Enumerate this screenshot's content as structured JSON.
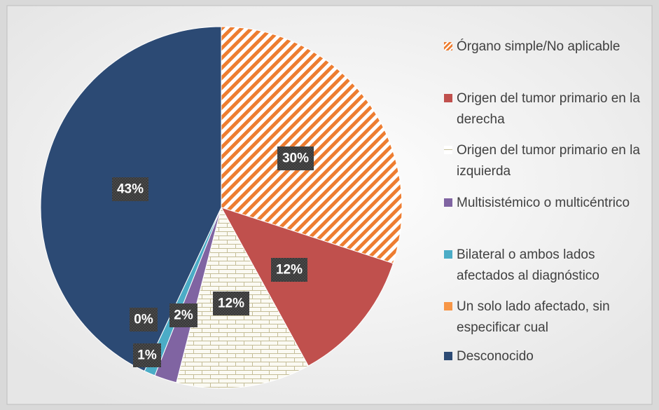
{
  "chart_data": {
    "type": "pie",
    "categories": [
      "Órgano simple/No aplicable",
      "Origen del tumor primario en la derecha",
      "Origen del tumor primario en la izquierda",
      "Multisistémico o multicéntrico",
      "Bilateral o ambos lados afectados al diagnóstico",
      "Un solo lado afectado, sin especificar cual",
      "Desconocido"
    ],
    "values": [
      30,
      12,
      12,
      2,
      1,
      0,
      43
    ],
    "value_labels": [
      "30%",
      "12%",
      "12%",
      "2%",
      "1%",
      "0%",
      "43%"
    ],
    "colors": [
      "#ed7d31",
      "#c0504d",
      "#c4bd97",
      "#8064a2",
      "#4bacc6",
      "#f79646",
      "#2c4a74"
    ],
    "legend": "right"
  }
}
